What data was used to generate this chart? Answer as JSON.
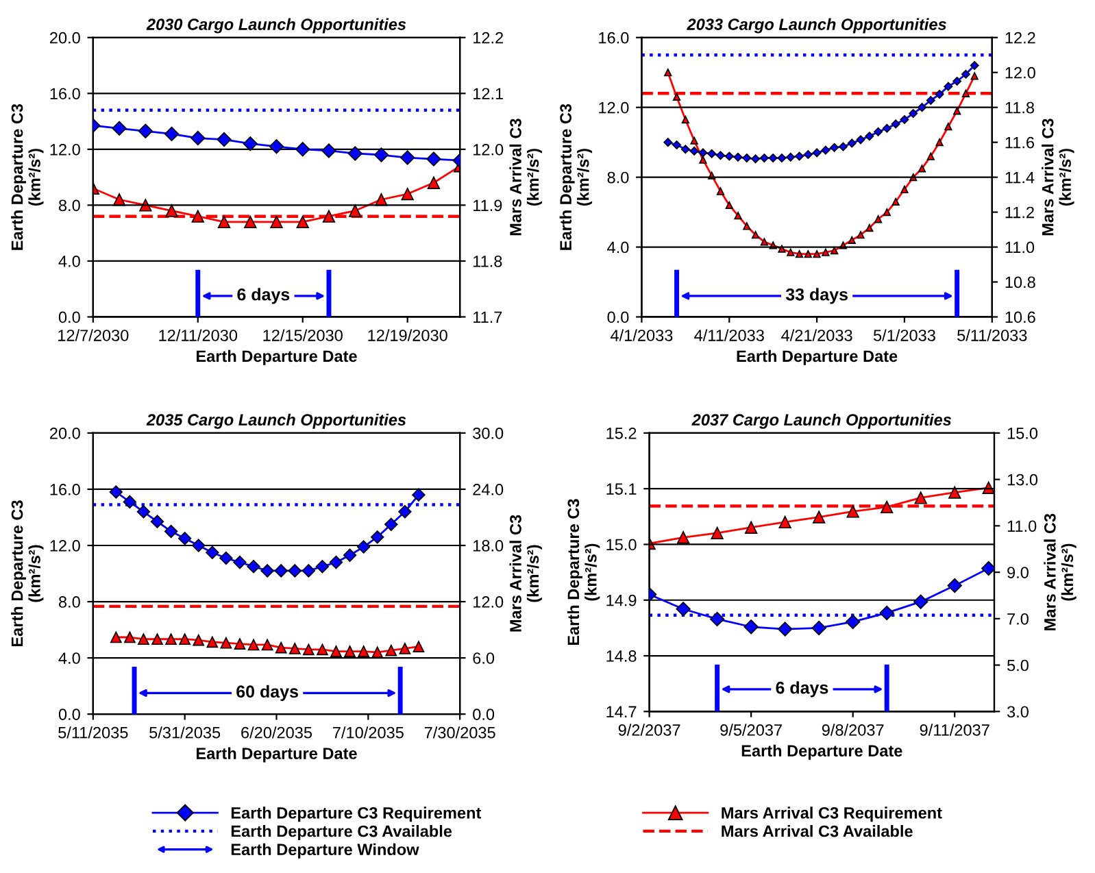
{
  "chart_data": [
    {
      "type": "line",
      "title": "2030 Cargo Launch Opportunities",
      "xlabel": "Earth Departure Date",
      "ylabel": "Earth Departure C3\n(km²/s²)",
      "y2label": "Mars Arrival C3\n(km²/s²)",
      "x": [
        "2030-12-07",
        "2030-12-08",
        "2030-12-09",
        "2030-12-10",
        "2030-12-11",
        "2030-12-12",
        "2030-12-13",
        "2030-12-14",
        "2030-12-15",
        "2030-12-16",
        "2030-12-17",
        "2030-12-18",
        "2030-12-19",
        "2030-12-20",
        "2030-12-21"
      ],
      "series": [
        {
          "color": "#0000ff",
          "marker": "diamond",
          "values": [
            13.7,
            13.5,
            13.3,
            13.1,
            12.8,
            12.7,
            12.4,
            12.2,
            12.0,
            11.9,
            11.7,
            11.6,
            11.4,
            11.3,
            11.2
          ]
        },
        {
          "color": "#ff0000",
          "marker": "triangle",
          "axis": "y2",
          "values": [
            11.93,
            11.91,
            11.9,
            11.89,
            11.88,
            11.87,
            11.87,
            11.87,
            11.87,
            11.88,
            11.89,
            11.91,
            11.92,
            11.94,
            11.97
          ]
        }
      ],
      "ref_lines": [
        {
          "axis": "y",
          "value": 14.8,
          "color": "#0000ff",
          "line_style": "dotted"
        },
        {
          "axis": "y2",
          "value": 11.88,
          "color": "#ff0000",
          "line_style": "dashed"
        },
        {
          "axis": "x",
          "value": "2030-12-11",
          "color": "#0000ff"
        },
        {
          "axis": "x",
          "value": "2030-12-16",
          "color": "#0000ff"
        }
      ],
      "annotations": [
        {
          "text": "6 days",
          "x": "2030-12-16",
          "y": 1.5
        }
      ],
      "xlim": [
        "2030-12-07",
        "2030-12-21"
      ],
      "xticks": [
        {
          "value": "2030-12-07",
          "label": "12/7/2030"
        },
        {
          "value": "2030-12-11",
          "label": "12/11/2030"
        },
        {
          "value": "2030-12-15",
          "label": "12/15/2030"
        },
        {
          "value": "2030-12-19",
          "label": "12/19/2030"
        }
      ],
      "ylim": [
        0,
        20
      ],
      "yticks": [
        {
          "value": 0,
          "label": "0.0"
        },
        {
          "value": 4,
          "label": "4.0"
        },
        {
          "value": 8,
          "label": "8.0"
        },
        {
          "value": 12,
          "label": "12.0"
        },
        {
          "value": 16,
          "label": "16.0"
        },
        {
          "value": 20,
          "label": "20.0"
        }
      ],
      "y2lim": [
        11.7,
        12.2
      ],
      "y2ticks": [
        11.7,
        11.8,
        11.9,
        {
          "value": 12.0,
          "label": "12.0"
        },
        12.1,
        12.2
      ],
      "grid": "y"
    },
    {
      "type": "line",
      "title": "2033 Cargo Launch Opportunities",
      "xlabel": "Earth Departure Date",
      "ylabel": "Earth Departure C3\n(km²/s²)",
      "y2label": "Mars Arrival C3\n(km²/s²)",
      "x": [
        "2033-04-04",
        "2033-04-05",
        "2033-04-06",
        "2033-04-07",
        "2033-04-08",
        "2033-04-09",
        "2033-04-10",
        "2033-04-11",
        "2033-04-12",
        "2033-04-13",
        "2033-04-14",
        "2033-04-15",
        "2033-04-16",
        "2033-04-17",
        "2033-04-18",
        "2033-04-19",
        "2033-04-20",
        "2033-04-21",
        "2033-04-22",
        "2033-04-23",
        "2033-04-24",
        "2033-04-25",
        "2033-04-26",
        "2033-04-27",
        "2033-04-28",
        "2033-04-29",
        "2033-04-30",
        "2033-05-01",
        "2033-05-02",
        "2033-05-03",
        "2033-05-04",
        "2033-05-05",
        "2033-05-06",
        "2033-05-07",
        "2033-05-08",
        "2033-05-09"
      ],
      "series": [
        {
          "color": "#0000ff",
          "marker": "diamond",
          "values": [
            10.0,
            9.85,
            9.6,
            9.5,
            9.4,
            9.35,
            9.25,
            9.2,
            9.15,
            9.1,
            9.05,
            9.1,
            9.1,
            9.1,
            9.15,
            9.2,
            9.3,
            9.4,
            9.55,
            9.7,
            9.75,
            9.95,
            10.15,
            10.35,
            10.6,
            10.8,
            11.05,
            11.3,
            11.65,
            12.0,
            12.4,
            12.75,
            13.2,
            13.5,
            13.9,
            14.4
          ]
        },
        {
          "color": "#ff0000",
          "marker": "triangle",
          "axis": "y2",
          "values": [
            12.0,
            11.86,
            11.73,
            11.61,
            11.5,
            11.41,
            11.32,
            11.24,
            11.18,
            11.12,
            11.07,
            11.03,
            11.01,
            10.99,
            10.97,
            10.96,
            10.96,
            10.96,
            10.97,
            10.98,
            11.01,
            11.04,
            11.07,
            11.11,
            11.16,
            11.2,
            11.26,
            11.33,
            11.4,
            11.45,
            11.52,
            11.6,
            11.69,
            11.78,
            11.88,
            11.98
          ]
        }
      ],
      "ref_lines": [
        {
          "axis": "y",
          "value": 15.0,
          "color": "#0000ff",
          "line_style": "dotted"
        },
        {
          "axis": "y2",
          "value": 11.88,
          "color": "#ff0000",
          "line_style": "dashed"
        },
        {
          "axis": "x",
          "value": "2033-04-05",
          "color": "#0000ff"
        },
        {
          "axis": "x",
          "value": "2033-05-07",
          "color": "#0000ff"
        }
      ],
      "annotations": [
        {
          "text": "33 days",
          "x": "2033-05-07",
          "y": 1.2
        }
      ],
      "xlim": [
        "2033-04-01",
        "2033-05-11"
      ],
      "xticks": [
        {
          "value": "2033-04-01",
          "label": "4/1/2033"
        },
        {
          "value": "2033-04-11",
          "label": "4/11/2033"
        },
        {
          "value": "2033-04-21",
          "label": "4/21/2033"
        },
        {
          "value": "2033-05-01",
          "label": "5/1/2033"
        },
        {
          "value": "2033-05-11",
          "label": "5/11/2033"
        }
      ],
      "ylim": [
        0,
        16
      ],
      "yticks": [
        {
          "value": 0,
          "label": "0.0"
        },
        {
          "value": 4,
          "label": "4.0"
        },
        {
          "value": 8,
          "label": "8.0"
        },
        {
          "value": 12,
          "label": "12.0"
        },
        {
          "value": 16,
          "label": "16.0"
        }
      ],
      "y2lim": [
        10.6,
        12.2
      ],
      "y2ticks": [
        10.6,
        10.8,
        {
          "value": 11.0,
          "label": "11.0"
        },
        11.2,
        11.4,
        11.6,
        11.8,
        {
          "value": 12.0,
          "label": "12.0"
        },
        12.2
      ],
      "grid": "y"
    },
    {
      "type": "line",
      "title": "2035 Cargo Launch Opportunities",
      "xlabel": "Earth Departure Date",
      "ylabel": "Earth Departure C3\n(km²/s²)",
      "y2label": "Mars Arrival C3\n(km²/s²)",
      "x": [
        "2035-05-16",
        "2035-05-19",
        "2035-05-22",
        "2035-05-25",
        "2035-05-28",
        "2035-05-31",
        "2035-06-03",
        "2035-06-06",
        "2035-06-09",
        "2035-06-12",
        "2035-06-15",
        "2035-06-18",
        "2035-06-21",
        "2035-06-24",
        "2035-06-27",
        "2035-06-30",
        "2035-07-03",
        "2035-07-06",
        "2035-07-09",
        "2035-07-12",
        "2035-07-15",
        "2035-07-18",
        "2035-07-21"
      ],
      "series": [
        {
          "name": "Earth Departure C3 Requirement",
          "color": "#0000ff",
          "marker": "diamond",
          "values": [
            15.8,
            15.1,
            14.4,
            13.7,
            13.0,
            12.5,
            12.0,
            11.5,
            11.1,
            10.8,
            10.5,
            10.2,
            10.2,
            10.2,
            10.2,
            10.5,
            10.8,
            11.3,
            11.9,
            12.6,
            13.5,
            14.4,
            15.6
          ]
        },
        {
          "name": "Mars Arrival C3 Requirement",
          "color": "#ff0000",
          "marker": "triangle",
          "axis": "y2",
          "values": [
            8.2,
            8.2,
            8.0,
            8.0,
            8.0,
            8.0,
            7.9,
            7.7,
            7.6,
            7.5,
            7.4,
            7.4,
            7.1,
            7.0,
            6.9,
            6.9,
            6.7,
            6.7,
            6.7,
            6.6,
            6.8,
            7.0,
            7.2
          ]
        }
      ],
      "ref_lines": [
        {
          "axis": "y",
          "value": 14.9,
          "label": "Earth Departure C3 Available",
          "color": "#0000ff",
          "line_style": "dotted"
        },
        {
          "axis": "y2",
          "value": 11.5,
          "label": "Mars Arrival C3 Available",
          "color": "#ff0000",
          "line_style": "dashed"
        },
        {
          "axis": "x",
          "value": "2035-05-20",
          "label": "Earth Departure Window",
          "color": "#0000ff"
        },
        {
          "axis": "x",
          "value": "2035-07-17",
          "color": "#0000ff"
        }
      ],
      "annotations": [
        {
          "text": "60 days",
          "x": "2035-07-17",
          "y": 1.5
        }
      ],
      "xlim": [
        "2035-05-11",
        "2035-07-30"
      ],
      "xticks": [
        {
          "value": "2035-05-11",
          "label": "5/11/2035"
        },
        {
          "value": "2035-05-31",
          "label": "5/31/2035"
        },
        {
          "value": "2035-06-20",
          "label": "6/20/2035"
        },
        {
          "value": "2035-07-10",
          "label": "7/10/2035"
        },
        {
          "value": "2035-07-30",
          "label": "7/30/2035"
        }
      ],
      "ylim": [
        0,
        20
      ],
      "yticks": [
        {
          "value": 0,
          "label": "0.0"
        },
        {
          "value": 4,
          "label": "4.0"
        },
        {
          "value": 8,
          "label": "8.0"
        },
        {
          "value": 12,
          "label": "12.0"
        },
        {
          "value": 16,
          "label": "16.0"
        },
        {
          "value": 20,
          "label": "20.0"
        }
      ],
      "y2lim": [
        0,
        30
      ],
      "y2ticks": [
        {
          "value": 0,
          "label": "0.0"
        },
        {
          "value": 6,
          "label": "6.0"
        },
        {
          "value": 12,
          "label": "12.0"
        },
        {
          "value": 18,
          "label": "18.0"
        },
        {
          "value": 24,
          "label": "24.0"
        },
        {
          "value": 30,
          "label": "30.0"
        }
      ],
      "grid": "y",
      "legend": "bottom"
    },
    {
      "type": "line",
      "title": "2037 Cargo Launch Opportunities",
      "xlabel": "Earth Departure Date",
      "ylabel": "Earth Departure C3\n(km²/s²)",
      "y2label": "Mars Arrival C3\n(km²/s²)",
      "x": [
        "2037-09-02",
        "2037-09-03",
        "2037-09-04",
        "2037-09-05",
        "2037-09-06",
        "2037-09-07",
        "2037-09-08",
        "2037-09-09",
        "2037-09-10",
        "2037-09-11",
        "2037-09-12"
      ],
      "series": [
        {
          "color": "#0000ff",
          "marker": "diamond",
          "values": [
            14.91,
            14.884,
            14.866,
            14.852,
            14.848,
            14.85,
            14.861,
            14.877,
            14.897,
            14.926,
            14.957
          ]
        },
        {
          "color": "#ff0000",
          "marker": "triangle",
          "axis": "y2",
          "values": [
            10.24,
            10.5,
            10.69,
            10.93,
            11.16,
            11.38,
            11.62,
            11.81,
            12.21,
            12.44,
            12.64
          ]
        }
      ],
      "ref_lines": [
        {
          "axis": "y",
          "value": 14.873,
          "color": "#0000ff",
          "line_style": "dotted"
        },
        {
          "axis": "y2",
          "value": 11.85,
          "color": "#ff0000",
          "line_style": "dashed"
        },
        {
          "axis": "x",
          "value": "2037-09-04",
          "color": "#0000ff"
        },
        {
          "axis": "x",
          "value": "2037-09-09",
          "color": "#0000ff"
        }
      ],
      "annotations": [
        {
          "text": "6 days",
          "x": "2037-09-09",
          "y": 14.74
        }
      ],
      "xlim": [
        "2037-09-02",
        "2037-09-12T04:00"
      ],
      "xticks": [
        {
          "value": "2037-09-02",
          "label": "9/2/2037"
        },
        {
          "value": "2037-09-05",
          "label": "9/5/2037"
        },
        {
          "value": "2037-09-08",
          "label": "9/8/2037"
        },
        {
          "value": "2037-09-11",
          "label": "9/11/2037"
        }
      ],
      "ylim": [
        14.7,
        15.2
      ],
      "yticks": [
        14.7,
        14.8,
        14.9,
        {
          "value": 15.0,
          "label": "15.0"
        },
        15.1,
        15.2
      ],
      "y2lim": [
        3,
        15
      ],
      "y2ticks": [
        {
          "value": 3,
          "label": "3.0"
        },
        {
          "value": 5,
          "label": "5.0"
        },
        {
          "value": 7,
          "label": "7.0"
        },
        {
          "value": 9,
          "label": "9.0"
        },
        {
          "value": 11,
          "label": "11.0"
        },
        {
          "value": 13,
          "label": "13.0"
        },
        {
          "value": 15,
          "label": "15.0"
        }
      ],
      "grid": "y"
    }
  ]
}
